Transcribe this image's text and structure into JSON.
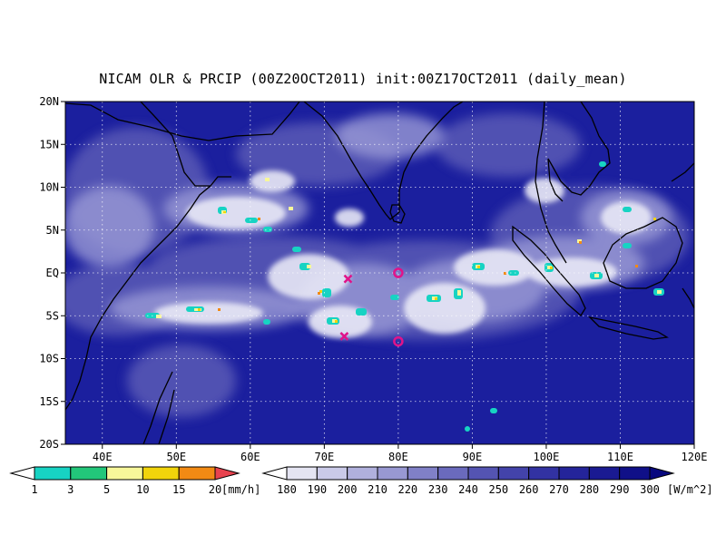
{
  "title": "NICAM OLR & PRCIP (00Z20OCT2011) init:00Z17OCT2011 (daily_mean)",
  "map": {
    "lon_range": [
      35,
      120
    ],
    "lat_range": [
      -20,
      20
    ],
    "lon_ticks": [
      "40E",
      "50E",
      "60E",
      "70E",
      "80E",
      "90E",
      "100E",
      "110E",
      "120E"
    ],
    "lat_ticks": [
      "20N",
      "15N",
      "10N",
      "5N",
      "EQ",
      "5S",
      "10S",
      "15S",
      "20S"
    ],
    "grid": "dotted",
    "ocean_color": "#1b1f9e",
    "markers": [
      {
        "type": "x",
        "lon": 73.2,
        "lat": -0.7,
        "color": "#e0138a"
      },
      {
        "type": "x",
        "lon": 72.7,
        "lat": -7.4,
        "color": "#e0138a"
      },
      {
        "type": "circle",
        "lon": 80.0,
        "lat": 0.0,
        "color": "#e0138a"
      },
      {
        "type": "circle",
        "lon": 80.0,
        "lat": -8.0,
        "color": "#e0138a"
      }
    ]
  },
  "precip_colorbar": {
    "labels": [
      "1",
      "3",
      "5",
      "10",
      "15",
      "20"
    ],
    "unit": "[mm/h]",
    "colors": [
      "#ffffff",
      "#17d3c3",
      "#22c77a",
      "#f7f79a",
      "#f1d40b",
      "#f28a14",
      "#e8434f"
    ]
  },
  "olr_colorbar": {
    "labels": [
      "180",
      "190",
      "200",
      "210",
      "220",
      "230",
      "240",
      "250",
      "260",
      "270",
      "280",
      "290",
      "300"
    ],
    "unit": "[W/m^2]",
    "colors": [
      "#ffffff",
      "#e4e4f2",
      "#cacae8",
      "#b0b0dd",
      "#9898d2",
      "#8080c7",
      "#6a6abd",
      "#5454b2",
      "#4343aa",
      "#3232a2",
      "#24249a",
      "#1a1a92",
      "#101088",
      "#08087e"
    ]
  }
}
